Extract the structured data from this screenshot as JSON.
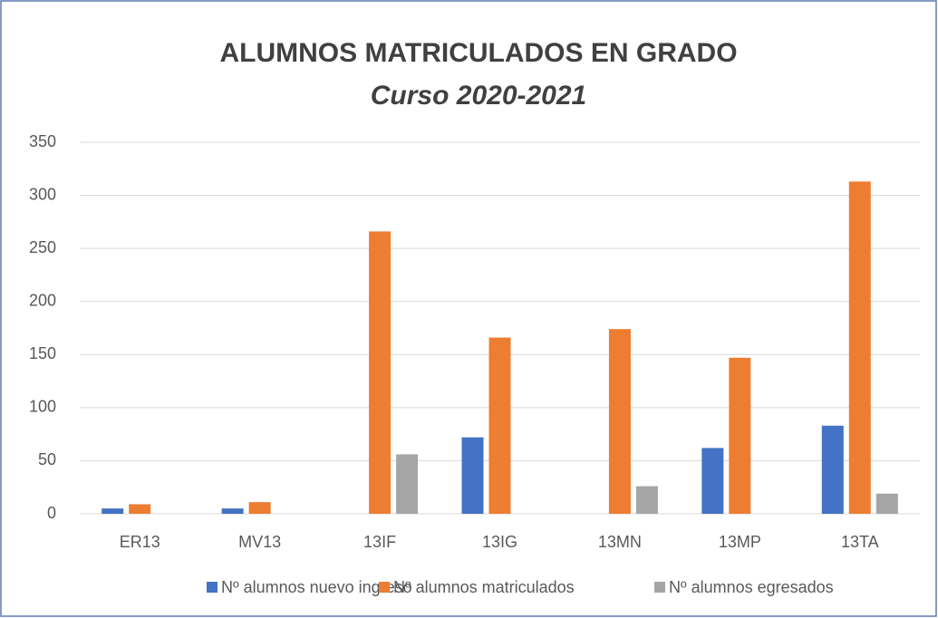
{
  "chart_data": {
    "type": "bar",
    "title": "ALUMNOS MATRICULADOS EN GRADO",
    "subtitle": "Curso 2020-2021",
    "categories": [
      "ER13",
      "MV13",
      "13IF",
      "13IG",
      "13MN",
      "13MP",
      "13TA"
    ],
    "series": [
      {
        "name": "Nº alumnos nuevo ingreso",
        "color": "#4472c4",
        "values": [
          5,
          5,
          0,
          72,
          0,
          62,
          83
        ]
      },
      {
        "name": "Nº alumnos matriculados",
        "color": "#ed7d31",
        "values": [
          9,
          11,
          266,
          166,
          174,
          147,
          313
        ]
      },
      {
        "name": "Nº alumnos egresados",
        "color": "#a5a5a5",
        "values": [
          0,
          0,
          56,
          0,
          26,
          0,
          19
        ]
      }
    ],
    "ylim": [
      0,
      350
    ],
    "yticks": [
      0,
      50,
      100,
      150,
      200,
      250,
      300,
      350
    ],
    "grid": true,
    "legend": "bottom"
  }
}
